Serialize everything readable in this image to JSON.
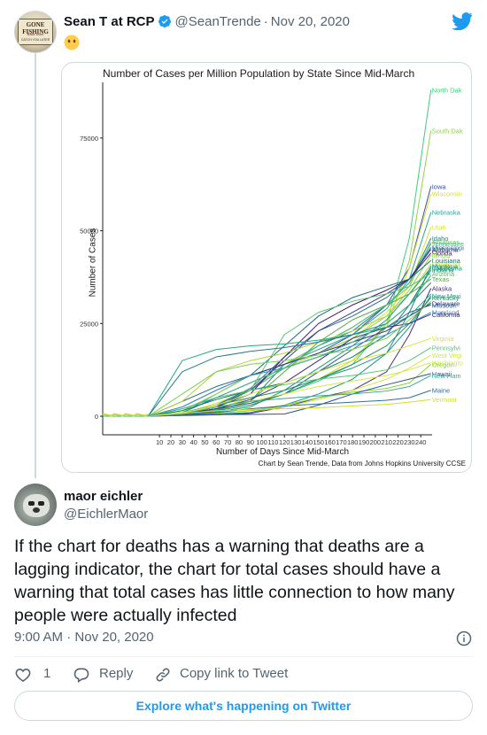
{
  "quoted_tweet": {
    "avatar": {
      "line1": "GONE FISHING",
      "line2": "Back soon",
      "line3": "CATCH YOU LATER"
    },
    "author_name": "Sean T at RCP",
    "handle": "@SeanTrende",
    "separator": "·",
    "date": "Nov 20, 2020",
    "emoji": "face-without-mouth"
  },
  "colors": {
    "accent": "#1d9bf0",
    "muted": "#536471",
    "border": "#cfd9de",
    "verified": "#1d9bf0"
  },
  "chart_data": {
    "type": "line",
    "title": "Number of Cases per Million Population by State Since Mid-March",
    "xlabel": "Number of Days Since Mid-March",
    "ylabel": "Number of Cases",
    "caption": "Chart by Sean Trende, Data from Johns Hopkins University CCSE",
    "xlim": [
      -40,
      250
    ],
    "ylim": [
      -5000,
      90000
    ],
    "x_ticks": [
      10,
      20,
      30,
      40,
      50,
      60,
      70,
      80,
      90,
      100,
      110,
      120,
      130,
      140,
      150,
      160,
      170,
      180,
      190,
      200,
      210,
      220,
      230,
      240
    ],
    "y_ticks": [
      0,
      25000,
      50000,
      75000
    ],
    "y_tick_labels": [
      "0",
      "25000",
      "50000",
      "75000"
    ],
    "grid": false,
    "legend": "direct-labels-right",
    "x_sample": [
      -40,
      0,
      30,
      60,
      90,
      120,
      150,
      180,
      210,
      230,
      249
    ],
    "series": [
      {
        "name": "North Dak",
        "color": "#3fcf7a",
        "values": [
          0,
          0,
          700,
          1800,
          3500,
          6000,
          9500,
          14000,
          25000,
          48000,
          88000
        ]
      },
      {
        "name": "South Dak",
        "color": "#8fd44a",
        "values": [
          0,
          0,
          500,
          3000,
          5000,
          7000,
          10000,
          15000,
          24000,
          42000,
          77000
        ]
      },
      {
        "name": "Iowa",
        "color": "#3b4fa0",
        "values": [
          0,
          0,
          1000,
          5000,
          9000,
          13000,
          17000,
          22000,
          30000,
          40000,
          62000
        ]
      },
      {
        "name": "Wisconsin",
        "color": "#d6e02a",
        "values": [
          0,
          0,
          500,
          2000,
          5000,
          7000,
          10000,
          15000,
          25000,
          40000,
          60000
        ]
      },
      {
        "name": "Nebraska",
        "color": "#2ba69a",
        "values": [
          0,
          0,
          800,
          6000,
          11000,
          14000,
          18000,
          22000,
          29000,
          37000,
          55000
        ]
      },
      {
        "name": "Utah",
        "color": "#d9e236",
        "values": [
          0,
          0,
          700,
          3500,
          7000,
          13000,
          17000,
          21000,
          28000,
          35000,
          51000
        ]
      },
      {
        "name": "Idaho",
        "color": "#25867f",
        "values": [
          0,
          0,
          800,
          1600,
          4000,
          14000,
          19000,
          23000,
          30000,
          36000,
          48000
        ]
      },
      {
        "name": "Arkansas",
        "color": "#7cc45e",
        "values": [
          0,
          0,
          600,
          2500,
          7000,
          14000,
          19000,
          24000,
          30000,
          35000,
          47000
        ]
      },
      {
        "name": "Tennessee",
        "color": "#45b88a",
        "values": [
          0,
          0,
          800,
          3000,
          7000,
          13000,
          19000,
          24000,
          30000,
          36000,
          46500
        ]
      },
      {
        "name": "Mississippi",
        "color": "#2d6e8e",
        "values": [
          0,
          0,
          800,
          3000,
          7500,
          16000,
          23000,
          27000,
          32000,
          37000,
          45500
        ]
      },
      {
        "name": "Alabama",
        "color": "#37408a",
        "values": [
          0,
          0,
          600,
          2500,
          7000,
          15000,
          23000,
          28000,
          33000,
          37000,
          45000
        ]
      },
      {
        "name": "Florida",
        "color": "#41196b",
        "values": [
          0,
          0,
          600,
          2500,
          6000,
          16000,
          25000,
          30000,
          34000,
          37000,
          44000
        ]
      },
      {
        "name": "Illinois",
        "color": "#8fd44a",
        "values": [
          0,
          0,
          1500,
          6000,
          11000,
          14000,
          17000,
          21000,
          27000,
          34000,
          43500
        ]
      },
      {
        "name": "Louisiana",
        "color": "#1a6d7a",
        "values": [
          0,
          0,
          4000,
          8000,
          11000,
          19000,
          27000,
          32000,
          35000,
          37000,
          42000
        ]
      },
      {
        "name": "Rhode Isl",
        "color": "#b2d236",
        "values": [
          0,
          0,
          4000,
          12000,
          15000,
          17000,
          20000,
          23000,
          27000,
          33000,
          41000
        ]
      },
      {
        "name": "Montana",
        "color": "#1f8f8f",
        "values": [
          0,
          0,
          300,
          600,
          1000,
          3000,
          6000,
          10000,
          17000,
          28000,
          40500
        ]
      },
      {
        "name": "Oklahoma",
        "color": "#1a9c7a",
        "values": [
          0,
          0,
          500,
          1200,
          2500,
          7000,
          13000,
          19000,
          26000,
          33000,
          40000
        ]
      },
      {
        "name": "Indiana",
        "color": "#0f7f6a",
        "values": [
          0,
          0,
          1500,
          4500,
          7000,
          9000,
          12000,
          16000,
          22000,
          30000,
          39500
        ]
      },
      {
        "name": "Arizona",
        "color": "#55c26e",
        "values": [
          0,
          0,
          500,
          2000,
          7000,
          22000,
          28000,
          31000,
          33000,
          35000,
          38500
        ]
      },
      {
        "name": "Texas",
        "color": "#5aa848",
        "values": [
          0,
          0,
          500,
          1500,
          4000,
          12000,
          20000,
          26000,
          30000,
          33000,
          37000
        ]
      },
      {
        "name": "Alaska",
        "color": "#4a2e82",
        "values": [
          0,
          0,
          200,
          400,
          800,
          2500,
          5000,
          7000,
          12000,
          22000,
          34500
        ]
      },
      {
        "name": "New Mexi",
        "color": "#1e9a8e",
        "values": [
          0,
          0,
          1000,
          3000,
          5000,
          7000,
          10000,
          13000,
          17000,
          24000,
          32500
        ]
      },
      {
        "name": "Kentucky",
        "color": "#2b8c5c",
        "values": [
          0,
          0,
          500,
          1500,
          3000,
          6000,
          10000,
          14000,
          19000,
          25000,
          32000
        ]
      },
      {
        "name": "Delaware",
        "color": "#3a2e7a",
        "values": [
          0,
          0,
          2500,
          7000,
          11000,
          14000,
          17000,
          20000,
          23000,
          27000,
          30500
        ]
      },
      {
        "name": "Missouri",
        "color": "#2f5f8a",
        "values": [
          0,
          0,
          600,
          2000,
          3500,
          6000,
          12000,
          18000,
          24000,
          28000,
          30000
        ]
      },
      {
        "name": "Maryland",
        "color": "#3a8fd0",
        "values": [
          0,
          0,
          2500,
          7000,
          11000,
          13000,
          16000,
          19000,
          22000,
          25000,
          28000
        ]
      },
      {
        "name": "California",
        "color": "#412b77",
        "values": [
          0,
          0,
          600,
          2000,
          4500,
          9000,
          15000,
          21000,
          24000,
          25000,
          27500
        ]
      },
      {
        "name": "Virginia",
        "color": "#d8e33a",
        "values": [
          0,
          0,
          800,
          3000,
          6000,
          9000,
          12000,
          15000,
          17000,
          19000,
          21000
        ]
      },
      {
        "name": "Pennsylvi",
        "color": "#58c27a",
        "values": [
          0,
          0,
          2000,
          5000,
          7000,
          8500,
          10000,
          11000,
          12500,
          15000,
          18500
        ]
      },
      {
        "name": "West Virgi",
        "color": "#cfe64a",
        "values": [
          0,
          0,
          300,
          800,
          1500,
          2500,
          4500,
          7000,
          10000,
          13000,
          16500
        ]
      },
      {
        "name": "Washingto",
        "color": "#d9e83a",
        "values": [
          0,
          0,
          1000,
          2500,
          4000,
          6000,
          8000,
          9500,
          11000,
          12500,
          14500
        ]
      },
      {
        "name": "Oregon",
        "color": "#8ad42a",
        "values": [
          0,
          0,
          300,
          800,
          1500,
          3000,
          5000,
          6500,
          7500,
          9000,
          14000
        ]
      },
      {
        "name": "Hawaii",
        "color": "#2e4f8f",
        "values": [
          0,
          0,
          300,
          450,
          500,
          600,
          3000,
          6000,
          8500,
          10000,
          11500
        ]
      },
      {
        "name": "New Ham",
        "color": "#3ba890",
        "values": [
          0,
          0,
          600,
          2500,
          4000,
          4800,
          5500,
          6000,
          6800,
          8000,
          11000
        ]
      },
      {
        "name": "Maine",
        "color": "#2e6ea0",
        "values": [
          0,
          0,
          300,
          1000,
          2000,
          2800,
          3300,
          3800,
          4300,
          5000,
          7000
        ]
      },
      {
        "name": "Vermont",
        "color": "#cfe02a",
        "values": [
          0,
          0,
          800,
          1500,
          1800,
          2000,
          2300,
          2800,
          3200,
          3800,
          4500
        ]
      },
      {
        "name": "",
        "color": "#22a884",
        "values": [
          0,
          0,
          15000,
          18000,
          19000,
          19500,
          20500,
          22000,
          24000,
          27000,
          33000
        ]
      },
      {
        "name": "",
        "color": "#2a788e",
        "values": [
          0,
          0,
          12000,
          16000,
          17500,
          18500,
          20000,
          22000,
          25000,
          30000,
          36000
        ]
      },
      {
        "name": "",
        "color": "#7ad151",
        "values": [
          0,
          0,
          6000,
          12000,
          14000,
          15000,
          16500,
          18000,
          21000,
          26000,
          31000
        ]
      },
      {
        "name": "",
        "color": "#35b779",
        "values": [
          0,
          0,
          2000,
          5000,
          9000,
          13000,
          16000,
          20000,
          25000,
          30000,
          38000
        ]
      }
    ]
  },
  "main_tweet": {
    "author_name": "maor eichler",
    "handle": "@EichlerMaor",
    "text": "If the chart for deaths has a warning that deaths are a lagging indicator, the chart for total cases should have a warning that total cases has little connection to how many people were actually infected",
    "time": "9:00 AM",
    "separator": "·",
    "date": "Nov 20, 2020"
  },
  "actions": {
    "like_count": "1",
    "reply_label": "Reply",
    "copy_label": "Copy link to Tweet"
  },
  "explore_label": "Explore what's happening on Twitter"
}
